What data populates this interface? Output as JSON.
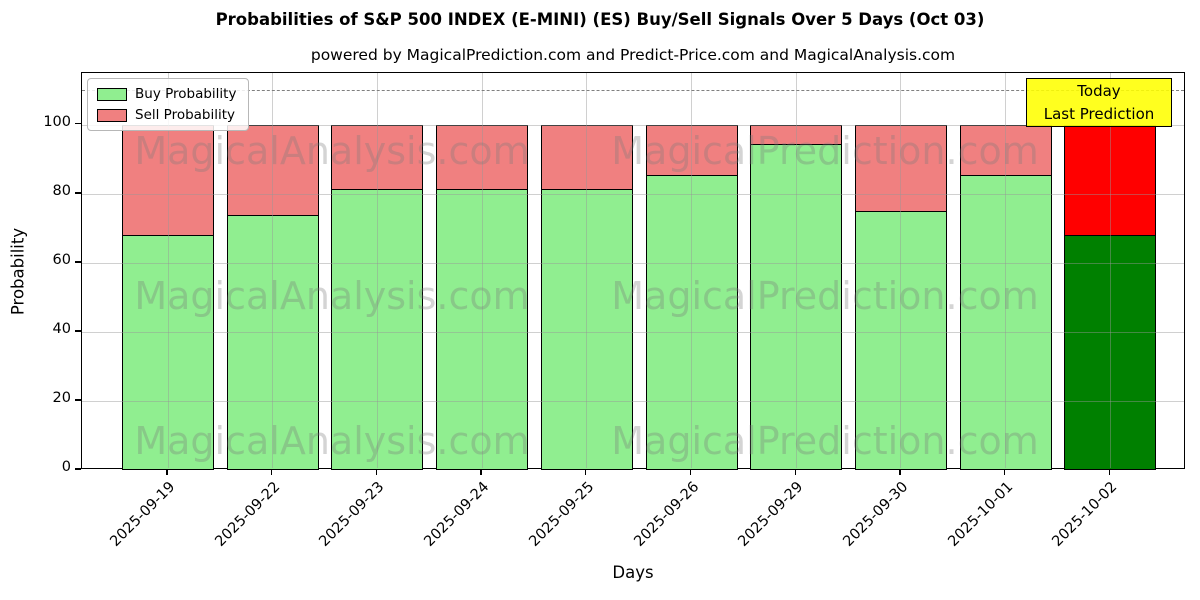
{
  "title": "Probabilities of S&P 500 INDEX (E-MINI) (ES) Buy/Sell Signals Over 5 Days (Oct 03)",
  "subtitle": "powered by MagicalPrediction.com and Predict-Price.com and MagicalAnalysis.com",
  "legend": {
    "items": [
      {
        "label": "Buy Probability",
        "color": "#90EE90"
      },
      {
        "label": "Sell Probability",
        "color": "#F08080"
      }
    ]
  },
  "annotation": {
    "line1": "Today",
    "line2": "Last Prediction",
    "bg_color": "#FFFF00"
  },
  "watermarks": {
    "left": "MagicalAnalysis.com",
    "right": "MagicalPrediction.com"
  },
  "chart_data": {
    "type": "bar",
    "stacked": true,
    "categories": [
      "2025-09-19",
      "2025-09-22",
      "2025-09-23",
      "2025-09-24",
      "2025-09-25",
      "2025-09-26",
      "2025-09-29",
      "2025-09-30",
      "2025-10-01",
      "2025-10-02"
    ],
    "series": [
      {
        "name": "Buy Probability",
        "color": "#90EE90",
        "values": [
          68,
          74,
          81.5,
          81.5,
          81.5,
          85.5,
          94.5,
          75,
          85.5,
          68
        ]
      },
      {
        "name": "Sell Probability",
        "color": "#F08080",
        "values": [
          32,
          26,
          18.5,
          18.5,
          18.5,
          14.5,
          5.5,
          25,
          14.5,
          32
        ]
      }
    ],
    "today_bar": {
      "index": 9,
      "buy_color": "#008000",
      "sell_color": "#FF0000"
    },
    "title": "Probabilities of S&P 500 INDEX (E-MINI) (ES) Buy/Sell Signals Over 5 Days (Oct 03)",
    "xlabel": "Days",
    "ylabel": "Probability",
    "yticks": [
      0,
      20,
      40,
      60,
      80,
      100
    ],
    "ylim": [
      0,
      115
    ],
    "dashed_line_y": 110,
    "grid": true,
    "legend_position": "upper left",
    "bar_edge_color": "#000000"
  }
}
